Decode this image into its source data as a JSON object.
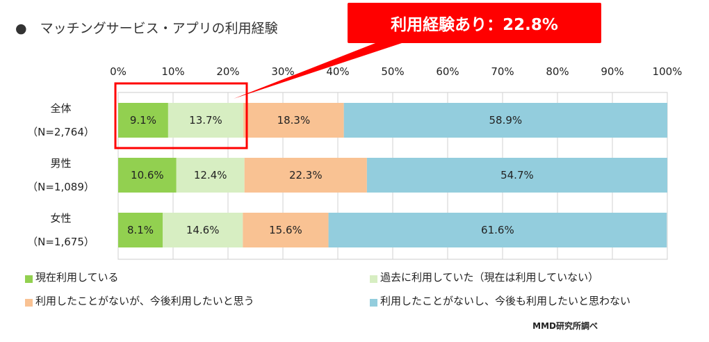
{
  "title": "●　マッチングサービス・アプリの利用経験",
  "callout": "利用経験あり：22.8%",
  "source": "MMD研究所調べ",
  "colors": [
    "#92d050",
    "#d7eec2",
    "#f9c293",
    "#93cddd"
  ],
  "chart_data": {
    "type": "bar",
    "orientation": "horizontal",
    "stacked": true,
    "title": "マッチングサービス・アプリの利用経験",
    "xlim": [
      0,
      100
    ],
    "ticks": [
      "0%",
      "10%",
      "20%",
      "30%",
      "40%",
      "50%",
      "60%",
      "70%",
      "80%",
      "90%",
      "100%"
    ],
    "categories": [
      {
        "name": "全体",
        "n": "（N=2,764）"
      },
      {
        "name": "男性",
        "n": "（N=1,089）"
      },
      {
        "name": "女性",
        "n": "（N=1,675）"
      }
    ],
    "series": [
      {
        "name": "現在利用している",
        "values": [
          9.1,
          10.6,
          8.1
        ]
      },
      {
        "name": "過去に利用していた（現在は利用していない）",
        "values": [
          13.7,
          12.4,
          14.6
        ]
      },
      {
        "name": "利用したことがないが、今後利用したいと思う",
        "values": [
          18.3,
          22.3,
          15.6
        ]
      },
      {
        "name": "利用したことがないし、今後も利用したいと思わない",
        "values": [
          58.9,
          54.7,
          61.6
        ]
      }
    ],
    "grid": true,
    "legend": "bottom"
  }
}
